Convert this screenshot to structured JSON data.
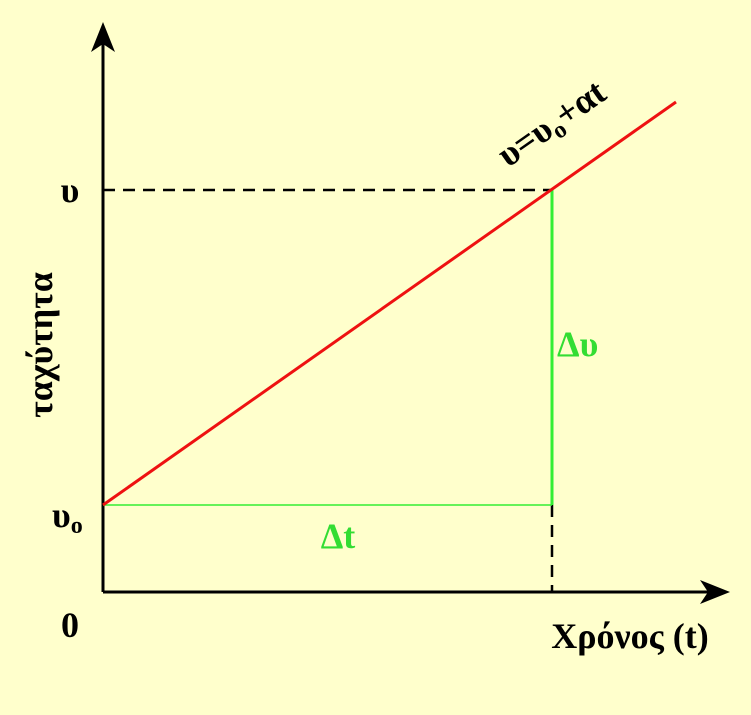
{
  "axes": {
    "y_label": "ταχύτητα",
    "x_label": "Χρόνος (t)",
    "origin": "0"
  },
  "y_marks": {
    "v": "υ",
    "v0": {
      "symbol": "υ",
      "subscript": "o"
    }
  },
  "equation": [
    "υ=υ",
    "o",
    "+αt"
  ],
  "delta_v": "Δυ",
  "delta_t": "Δt"
}
